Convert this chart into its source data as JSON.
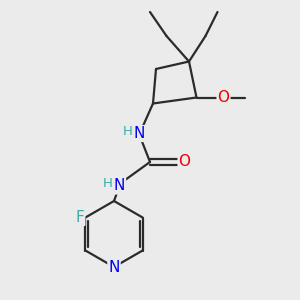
{
  "bg_color": "#ebebeb",
  "bond_color": "#2b2b2b",
  "atom_colors": {
    "N": "#0000ee",
    "O": "#ee0000",
    "F": "#3aaea4",
    "H": "#3aaea4",
    "C": "#2b2b2b"
  },
  "lw": 1.6,
  "fs": 10.0,
  "fs_small": 9.0
}
